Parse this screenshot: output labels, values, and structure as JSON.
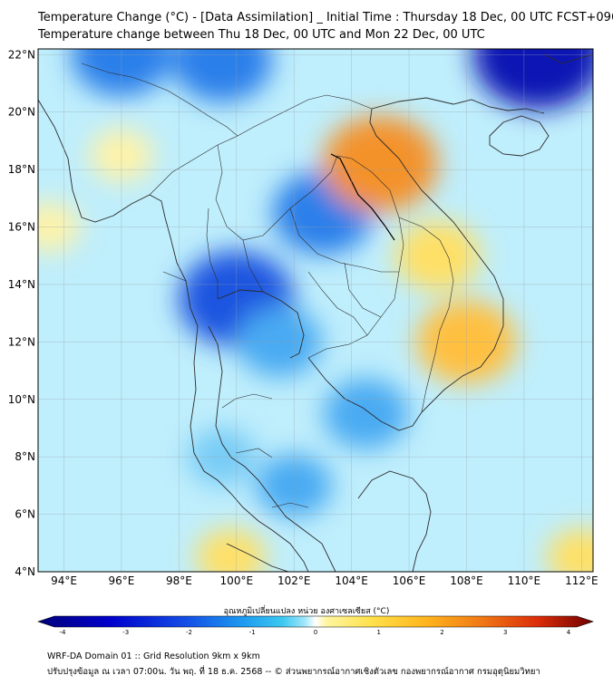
{
  "header": {
    "title_line1": "Temperature Change (°C) - [Data Assimilation] _ Initial Time : Thursday 18 Dec, 00 UTC FCST+096",
    "title_line2": "Temperature change between Thu 18 Dec, 00 UTC and Mon 22 Dec, 00 UTC"
  },
  "map": {
    "lat_labels": [
      "22°N",
      "20°N",
      "18°N",
      "16°N",
      "14°N",
      "12°N",
      "10°N",
      "8°N",
      "6°N",
      "4°N"
    ],
    "lon_labels": [
      "94°E",
      "96°E",
      "98°E",
      "100°E",
      "102°E",
      "104°E",
      "106°E",
      "108°E",
      "110°E",
      "112°E"
    ],
    "lat_values": [
      22,
      20,
      18,
      16,
      14,
      12,
      10,
      8,
      6,
      4
    ],
    "lon_values": [
      94,
      96,
      98,
      100,
      102,
      104,
      106,
      108,
      110,
      112
    ],
    "anomalies": [
      {
        "lon": 96.0,
        "lat": 22.0,
        "level": -2
      },
      {
        "lon": 99.5,
        "lat": 21.8,
        "level": -2
      },
      {
        "lon": 110.5,
        "lat": 22.0,
        "level": -3
      },
      {
        "lon": 103.0,
        "lat": 16.5,
        "level": -2
      },
      {
        "lon": 100.0,
        "lat": 13.5,
        "level": -2.5
      },
      {
        "lon": 101.5,
        "lat": 12.0,
        "level": -1.5
      },
      {
        "lon": 104.5,
        "lat": 9.5,
        "level": -1.5
      },
      {
        "lon": 102.0,
        "lat": 7.0,
        "level": -1.2
      },
      {
        "lon": 99.5,
        "lat": 8.0,
        "level": -1
      },
      {
        "lon": 105.0,
        "lat": 18.2,
        "level": 2.5
      },
      {
        "lon": 107.0,
        "lat": 15.0,
        "level": 1.5
      },
      {
        "lon": 108.0,
        "lat": 12.0,
        "level": 2
      },
      {
        "lon": 96.0,
        "lat": 18.5,
        "level": 0.8
      },
      {
        "lon": 93.5,
        "lat": 16.0,
        "level": 0.7
      },
      {
        "lon": 99.8,
        "lat": 4.5,
        "level": 1
      },
      {
        "lon": 112.0,
        "lat": 4.5,
        "level": 1
      }
    ]
  },
  "colorbar": {
    "title": "อุณหภูมิเปลี่ยนแปลง หน่วย องศาเซลเซียส (°C)",
    "ticks": [
      "-4",
      "-3",
      "-2",
      "-1",
      "0",
      "1",
      "2",
      "3",
      "4"
    ],
    "tick_values": [
      -4,
      -3,
      -2,
      -1,
      0,
      1,
      2,
      3,
      4
    ],
    "colors": [
      "#00007a",
      "#0000cc",
      "#1450e6",
      "#1e9bf0",
      "#3cc8f0",
      "#a0e6fa",
      "#ffffff",
      "#fff5a0",
      "#ffe14b",
      "#ffb41e",
      "#f07814",
      "#dc2d0a",
      "#a00000",
      "#6e0000"
    ]
  },
  "footer": {
    "line1": "WRF-DA Domain 01 :: Grid Resolution 9km x 9km",
    "line2": "ปรับปรุงข้อมูล ณ เวลา 07:00น. วัน พฤ. ที่ 18 ธ.ค. 2568 -- © ส่วนพยากรณ์อากาศเชิงตัวเลข กองพยากรณ์อากาศ กรมอุตุนิยมวิทยา"
  }
}
